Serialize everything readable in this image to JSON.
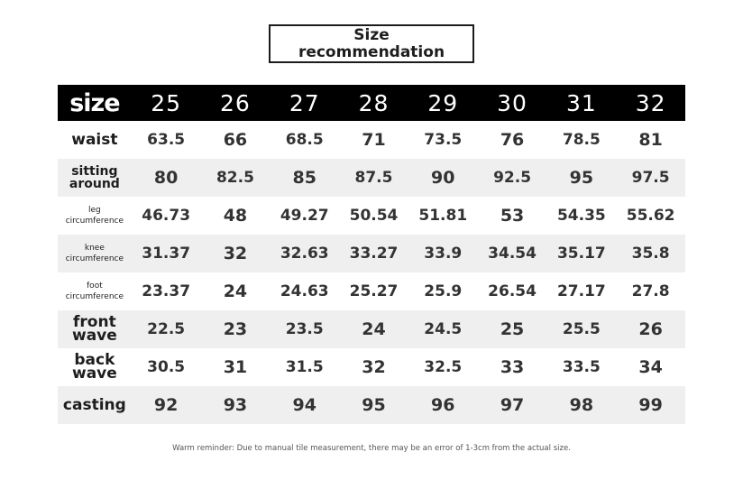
{
  "title": {
    "line1": "Size",
    "line2": "recommendation"
  },
  "table": {
    "header_label": "size",
    "sizes": [
      "25",
      "26",
      "27",
      "28",
      "29",
      "30",
      "31",
      "32"
    ],
    "rows": [
      {
        "label_lines": [
          "waist"
        ],
        "values": [
          "63.5",
          "66",
          "68.5",
          "71",
          "73.5",
          "76",
          "78.5",
          "81"
        ]
      },
      {
        "label_lines": [
          "sitting",
          "around"
        ],
        "values": [
          "80",
          "82.5",
          "85",
          "87.5",
          "90",
          "92.5",
          "95",
          "97.5"
        ]
      },
      {
        "label_lines": [
          "leg",
          "circumference"
        ],
        "values": [
          "46.73",
          "48",
          "49.27",
          "50.54",
          "51.81",
          "53",
          "54.35",
          "55.62"
        ]
      },
      {
        "label_lines": [
          "knee",
          "circumference"
        ],
        "values": [
          "31.37",
          "32",
          "32.63",
          "33.27",
          "33.9",
          "34.54",
          "35.17",
          "35.8"
        ]
      },
      {
        "label_lines": [
          "foot",
          "circumference"
        ],
        "values": [
          "23.37",
          "24",
          "24.63",
          "25.27",
          "25.9",
          "26.54",
          "27.17",
          "27.8"
        ]
      },
      {
        "label_lines": [
          "front",
          "wave"
        ],
        "values": [
          "22.5",
          "23",
          "23.5",
          "24",
          "24.5",
          "25",
          "25.5",
          "26"
        ]
      },
      {
        "label_lines": [
          "back",
          "wave"
        ],
        "values": [
          "30.5",
          "31",
          "31.5",
          "32",
          "32.5",
          "33",
          "33.5",
          "34"
        ]
      },
      {
        "label_lines": [
          "casting"
        ],
        "values": [
          "92",
          "93",
          "94",
          "95",
          "96",
          "97",
          "98",
          "99"
        ]
      }
    ]
  },
  "reminder": "Warm reminder: Due to manual tile measurement, there may be an error of 1-3cm from the actual size."
}
